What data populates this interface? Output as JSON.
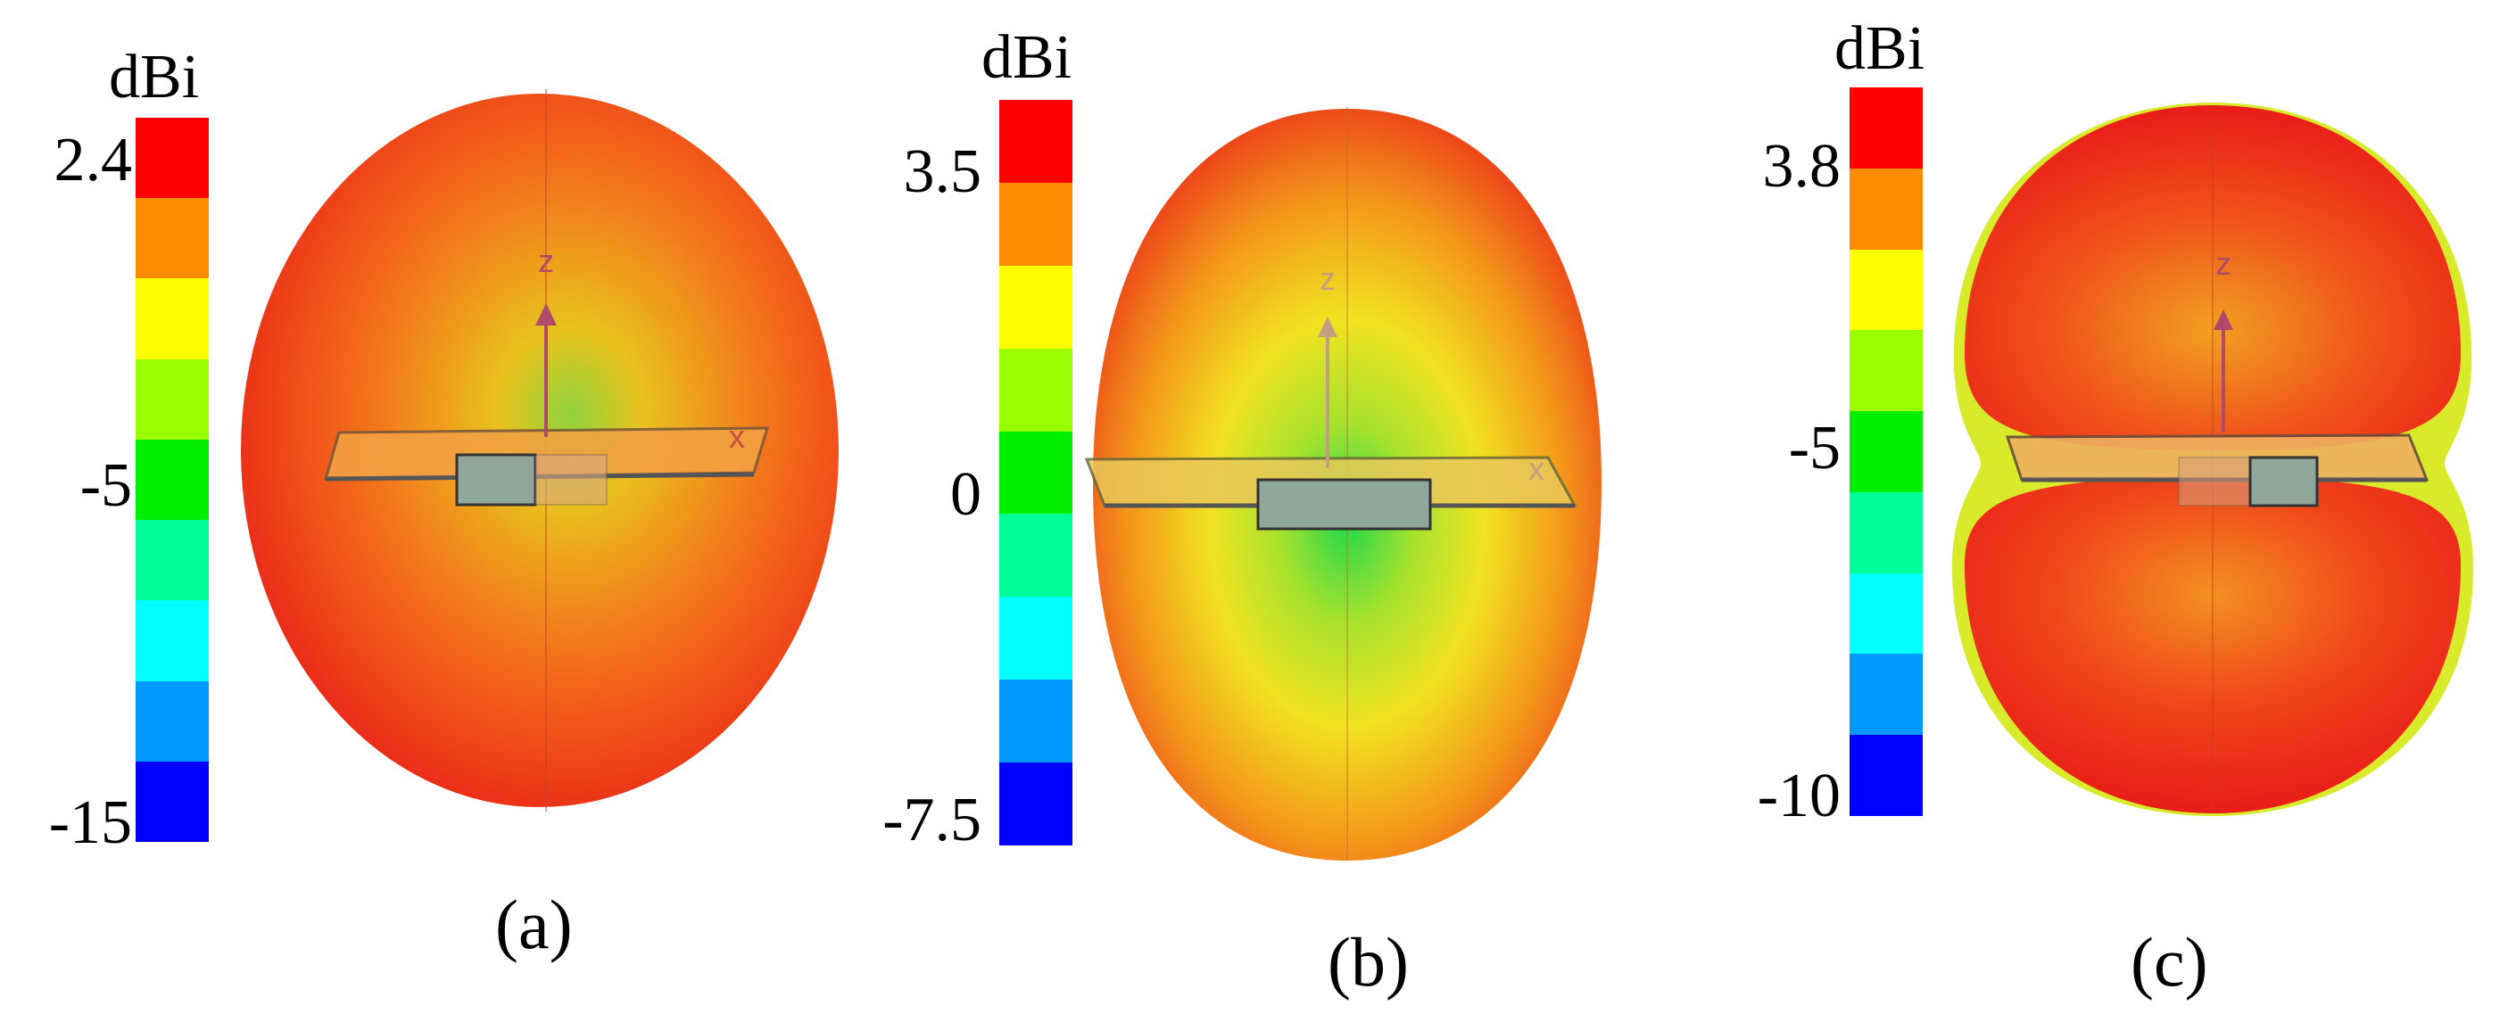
{
  "panels": [
    {
      "id": "a",
      "caption": "(a)",
      "unit": "dBi",
      "ticks": [
        "2.4",
        "-5",
        "-15"
      ],
      "axis_labels": {
        "z": "z",
        "x": "x"
      }
    },
    {
      "id": "b",
      "caption": "(b)",
      "unit": "dBi",
      "ticks": [
        "3.5",
        "0",
        "-7.5"
      ],
      "axis_labels": {
        "z": "z",
        "x": "x"
      }
    },
    {
      "id": "c",
      "caption": "(c)",
      "unit": "dBi",
      "ticks": [
        "3.8",
        "-5",
        "-10"
      ],
      "axis_labels": {
        "z": "z"
      }
    }
  ],
  "colorbar_colors": [
    "#ff0000",
    "#ff8c00",
    "#ffff00",
    "#99ff00",
    "#00ee00",
    "#00ff99",
    "#00ffff",
    "#0099ff",
    "#0000ff"
  ],
  "colors": {
    "pattern_red": "#ee1c16",
    "pattern_orange": "#f47a14",
    "pattern_yellow": "#f4e01e",
    "pattern_green": "#2ed838",
    "antenna_box": "#8fa69b",
    "axis_arrow": "#b04a6a"
  }
}
